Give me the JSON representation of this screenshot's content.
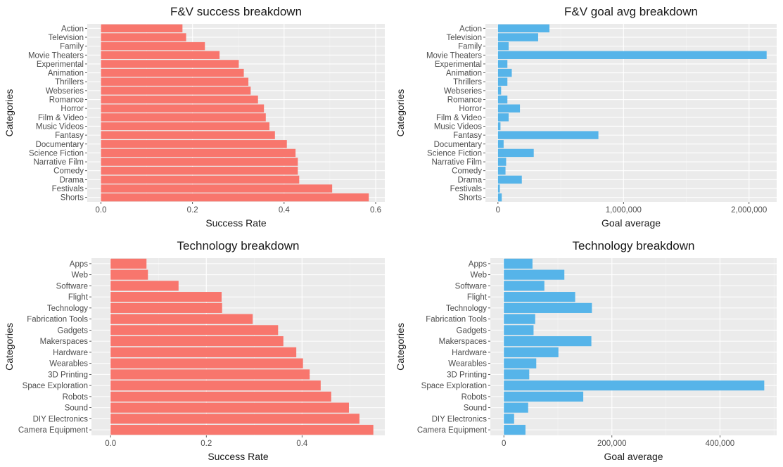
{
  "chart_data": [
    {
      "type": "bar",
      "orientation": "horizontal",
      "title": "F&V success breakdown",
      "xlabel": "Success Rate",
      "ylabel": "Categories",
      "color": "#F8766D",
      "xlim": [
        -0.03,
        0.62
      ],
      "xticks": [
        0.0,
        0.2,
        0.4,
        0.6
      ],
      "xtick_labels": [
        "0.0",
        "0.2",
        "0.4",
        "0.6"
      ],
      "categories": [
        "Action",
        "Television",
        "Family",
        "Movie Theaters",
        "Experimental",
        "Animation",
        "Thrillers",
        "Webseries",
        "Romance",
        "Horror",
        "Film & Video",
        "Music Videos",
        "Fantasy",
        "Documentary",
        "Science Fiction",
        "Narrative Film",
        "Comedy",
        "Drama",
        "Festivals",
        "Shorts"
      ],
      "values": [
        0.178,
        0.186,
        0.227,
        0.259,
        0.301,
        0.312,
        0.322,
        0.327,
        0.343,
        0.356,
        0.36,
        0.368,
        0.38,
        0.406,
        0.425,
        0.43,
        0.43,
        0.433,
        0.505,
        0.585
      ],
      "grid": true
    },
    {
      "type": "bar",
      "orientation": "horizontal",
      "title": "F&V goal avg breakdown",
      "xlabel": "Goal average",
      "ylabel": "Categories",
      "color": "#56B4E9",
      "xlim": [
        -100000,
        2220000
      ],
      "xticks": [
        0,
        1000000,
        2000000
      ],
      "xtick_labels": [
        "0",
        "1,000,000",
        "2,000,000"
      ],
      "categories": [
        "Action",
        "Television",
        "Family",
        "Movie Theaters",
        "Experimental",
        "Animation",
        "Thrillers",
        "Webseries",
        "Romance",
        "Horror",
        "Film & Video",
        "Music Videos",
        "Fantasy",
        "Documentary",
        "Science Fiction",
        "Narrative Film",
        "Comedy",
        "Drama",
        "Festivals",
        "Shorts"
      ],
      "values": [
        410000,
        320000,
        85000,
        2140000,
        75000,
        110000,
        75000,
        25000,
        75000,
        175000,
        85000,
        20000,
        800000,
        45000,
        285000,
        65000,
        60000,
        190000,
        15000,
        30000
      ],
      "grid": true
    },
    {
      "type": "bar",
      "orientation": "horizontal",
      "title": "Technology breakdown",
      "xlabel": "Success Rate",
      "ylabel": "Categories",
      "color": "#F8766D",
      "xlim": [
        -0.04,
        0.573
      ],
      "xticks": [
        0.0,
        0.2,
        0.4
      ],
      "xtick_labels": [
        "0.0",
        "0.2",
        "0.4"
      ],
      "categories": [
        "Apps",
        "Web",
        "Software",
        "Flight",
        "Technology",
        "Fabrication Tools",
        "Gadgets",
        "Makerspaces",
        "Hardware",
        "Wearables",
        "3D Printing",
        "Space Exploration",
        "Robots",
        "Sound",
        "DIY Electronics",
        "Camera Equipment"
      ],
      "values": [
        0.075,
        0.078,
        0.142,
        0.232,
        0.233,
        0.297,
        0.35,
        0.361,
        0.388,
        0.402,
        0.416,
        0.439,
        0.461,
        0.498,
        0.52,
        0.549
      ],
      "grid": true
    },
    {
      "type": "bar",
      "orientation": "horizontal",
      "title": "Technology breakdown",
      "xlabel": "Goal average",
      "ylabel": "Categories",
      "color": "#56B4E9",
      "xlim": [
        -25000,
        505000
      ],
      "xticks": [
        0,
        200000,
        400000
      ],
      "xtick_labels": [
        "0",
        "200,000",
        "400,000"
      ],
      "categories": [
        "Apps",
        "Web",
        "Software",
        "Flight",
        "Technology",
        "Fabrication Tools",
        "Gadgets",
        "Makerspaces",
        "Hardware",
        "Wearables",
        "3D Printing",
        "Space Exploration",
        "Robots",
        "Sound",
        "DIY Electronics",
        "Camera Equipment"
      ],
      "values": [
        53000,
        112000,
        75000,
        132000,
        163000,
        58000,
        55000,
        162000,
        101000,
        60000,
        47000,
        482000,
        147000,
        45000,
        19000,
        40000
      ],
      "grid": true
    }
  ]
}
